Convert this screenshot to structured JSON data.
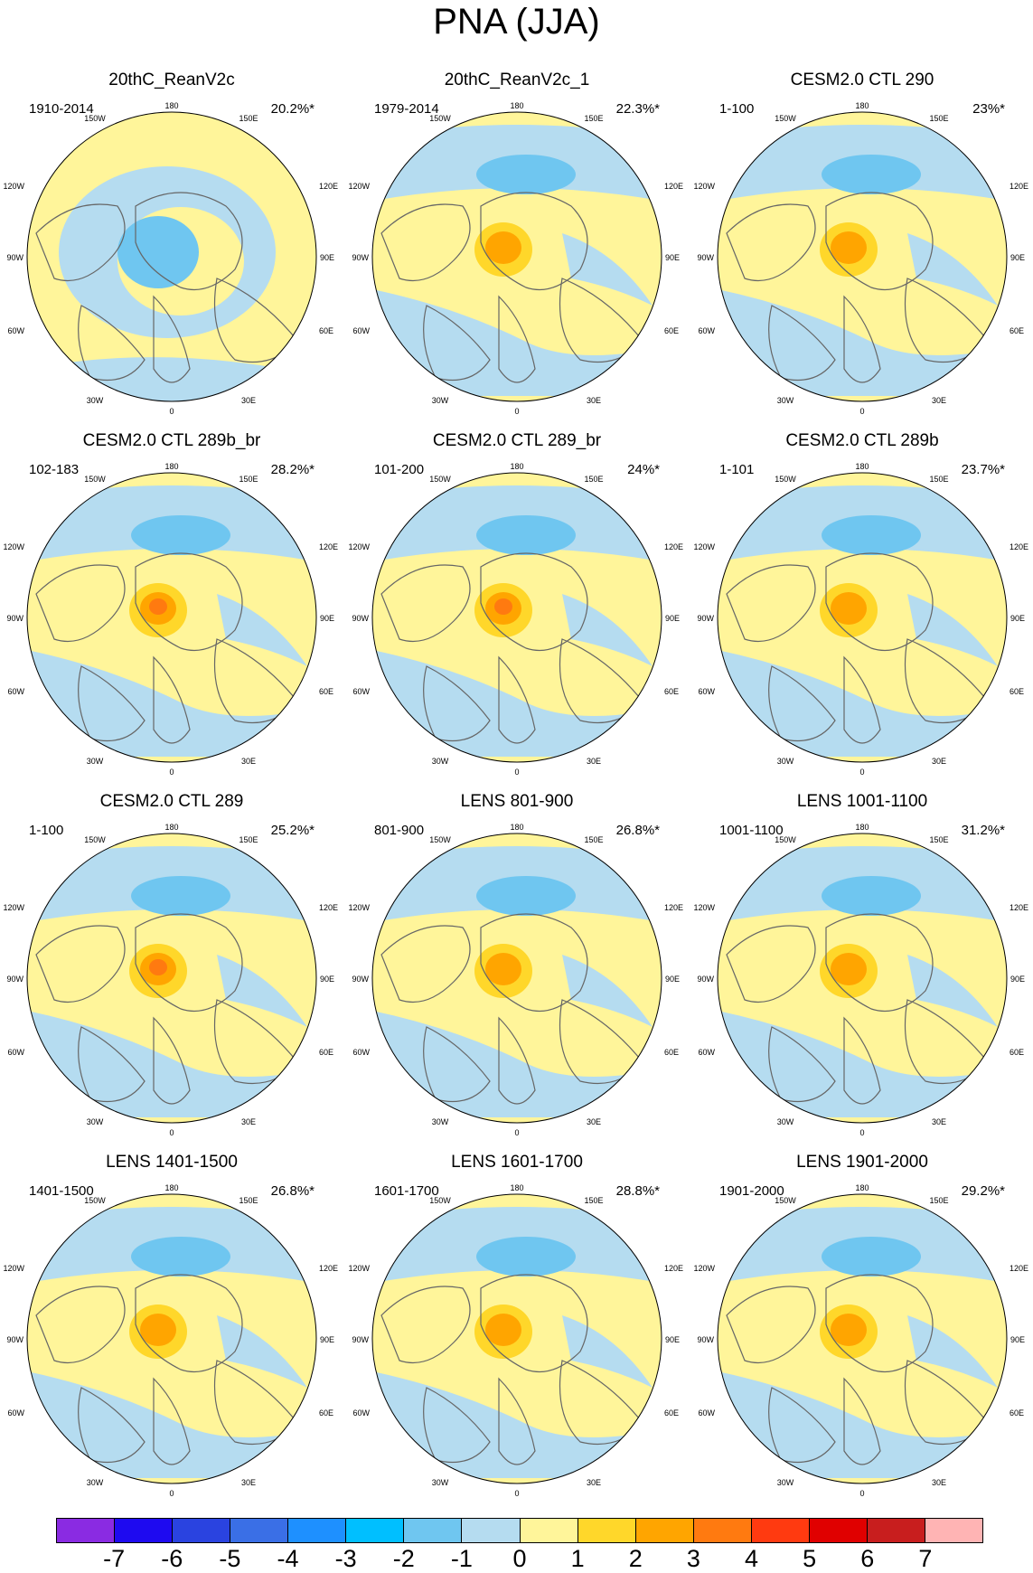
{
  "figure": {
    "title": "PNA (JJA)"
  },
  "map_grid_labels": {
    "top": "180",
    "bottom": "0",
    "upper_left": "150W",
    "upper_right": "150E",
    "left_upper": "120W",
    "right_upper": "120E",
    "left": "90W",
    "right": "90E",
    "left_lower": "60W",
    "right_lower": "60E",
    "lower_left": "30W",
    "lower_right": "30E"
  },
  "panels": [
    {
      "title": "20thC_ReanV2c",
      "period": "1910-2014",
      "variance": "20.2%*",
      "pattern": "negative_pole"
    },
    {
      "title": "20thC_ReanV2c_1",
      "period": "1979-2014",
      "variance": "22.3%*",
      "pattern": "positive_pole"
    },
    {
      "title": "CESM2.0 CTL 290",
      "period": "1-100",
      "variance": "23%*",
      "pattern": "positive_pole"
    },
    {
      "title": "CESM2.0 CTL 289b_br",
      "period": "102-183",
      "variance": "28.2%*",
      "pattern": "positive_pole_strong"
    },
    {
      "title": "CESM2.0 CTL 289_br",
      "period": "101-200",
      "variance": "24%*",
      "pattern": "positive_pole_strong"
    },
    {
      "title": "CESM2.0 CTL 289b",
      "period": "1-101",
      "variance": "23.7%*",
      "pattern": "positive_pole"
    },
    {
      "title": "CESM2.0 CTL 289",
      "period": "1-100",
      "variance": "25.2%*",
      "pattern": "positive_pole_strong"
    },
    {
      "title": "LENS 801-900",
      "period": "801-900",
      "variance": "26.8%*",
      "pattern": "positive_pole"
    },
    {
      "title": "LENS 1001-1100",
      "period": "1001-1100",
      "variance": "31.2%*",
      "pattern": "positive_pole"
    },
    {
      "title": "LENS 1401-1500",
      "period": "1401-1500",
      "variance": "26.8%*",
      "pattern": "positive_pole"
    },
    {
      "title": "LENS 1601-1700",
      "period": "1601-1700",
      "variance": "28.8%*",
      "pattern": "positive_pole"
    },
    {
      "title": "LENS 1901-2000",
      "period": "1901-2000",
      "variance": "29.2%*",
      "pattern": "positive_pole"
    }
  ],
  "colorbar": {
    "labels": [
      "-7",
      "-6",
      "-5",
      "-4",
      "-3",
      "-2",
      "-1",
      "0",
      "1",
      "2",
      "3",
      "4",
      "5",
      "6",
      "7"
    ],
    "colors": [
      "#8a2be2",
      "#1e0af0",
      "#2a43e0",
      "#3a6fe6",
      "#1e90ff",
      "#00bfff",
      "#6fc6f0",
      "#b5dcf0",
      "#fff59a",
      "#ffd72a",
      "#ffa500",
      "#ff7a10",
      "#ff3a10",
      "#e00000",
      "#c81e1e",
      "#ffb4b4"
    ]
  },
  "palette": {
    "map_positive": "#fff59a",
    "map_negative": "#b5dcf0",
    "land": "#666666"
  }
}
